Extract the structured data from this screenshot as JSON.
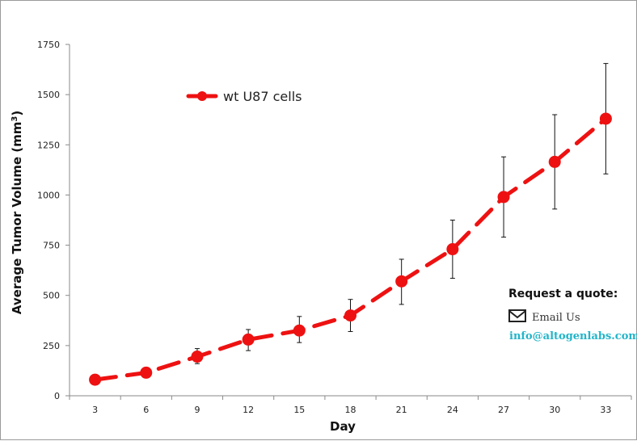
{
  "chart_data": {
    "type": "line",
    "title": "",
    "xlabel": "Day",
    "ylabel": "Average Tumor Volume (mm",
    "ylabel_sup": "3",
    "ylabel_close": ")",
    "ylim": [
      0,
      1750
    ],
    "yticks": [
      0,
      250,
      500,
      750,
      1000,
      1250,
      1500,
      1750
    ],
    "categories": [
      "3",
      "6",
      "9",
      "12",
      "15",
      "18",
      "21",
      "24",
      "27",
      "30",
      "33"
    ],
    "series": [
      {
        "name": "wt U87 cells",
        "color": "#ee1111",
        "values": [
          80,
          115,
          195,
          280,
          325,
          400,
          570,
          730,
          990,
          1165,
          1380
        ],
        "err_upper": [
          80,
          115,
          235,
          330,
          395,
          480,
          680,
          875,
          1190,
          1400,
          1655
        ],
        "err_lower": [
          80,
          115,
          160,
          225,
          265,
          320,
          455,
          585,
          790,
          930,
          1105
        ]
      }
    ],
    "legend": "top-left",
    "grid": false
  },
  "quote": {
    "title": "Request a quote:",
    "email_label": "Email Us",
    "email_address": "info@altogenlabs.com",
    "address_color": "#22b5c9",
    "icon": "envelope-icon"
  }
}
